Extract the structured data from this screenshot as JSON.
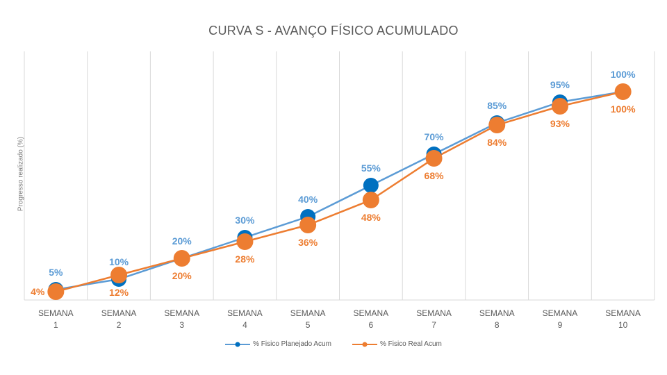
{
  "chart_data": {
    "type": "line",
    "title": "CURVA S - AVANÇO FÍSICO ACUMULADO",
    "xlabel": "",
    "ylabel": "Progresso realizado (%)",
    "ylim": [
      0,
      100
    ],
    "grid": "vertical",
    "legend_position": "bottom",
    "categories": [
      [
        "SEMANA",
        "1"
      ],
      [
        "SEMANA",
        "2"
      ],
      [
        "SEMANA",
        "3"
      ],
      [
        "SEMANA",
        "4"
      ],
      [
        "SEMANA",
        "5"
      ],
      [
        "SEMANA",
        "6"
      ],
      [
        "SEMANA",
        "7"
      ],
      [
        "SEMANA",
        "8"
      ],
      [
        "SEMANA",
        "9"
      ],
      [
        "SEMANA",
        "10"
      ]
    ],
    "series": [
      {
        "name": "% Fisico Planejado Acum",
        "color": "#5B9BD5",
        "marker_color": "#0070C0",
        "values": [
          5,
          10,
          20,
          30,
          40,
          55,
          70,
          85,
          95,
          100
        ],
        "labels": [
          "5%",
          "10%",
          "20%",
          "30%",
          "40%",
          "55%",
          "70%",
          "85%",
          "95%",
          "100%"
        ],
        "label_position": "above"
      },
      {
        "name": "% Fisico Real Acum",
        "color": "#ED7D31",
        "marker_color": "#ED7D31",
        "values": [
          4,
          12,
          20,
          28,
          36,
          48,
          68,
          84,
          93,
          100
        ],
        "labels": [
          "4%",
          "12%",
          "20%",
          "28%",
          "36%",
          "48%",
          "68%",
          "84%",
          "93%",
          "100%"
        ],
        "label_position": "below"
      }
    ]
  }
}
